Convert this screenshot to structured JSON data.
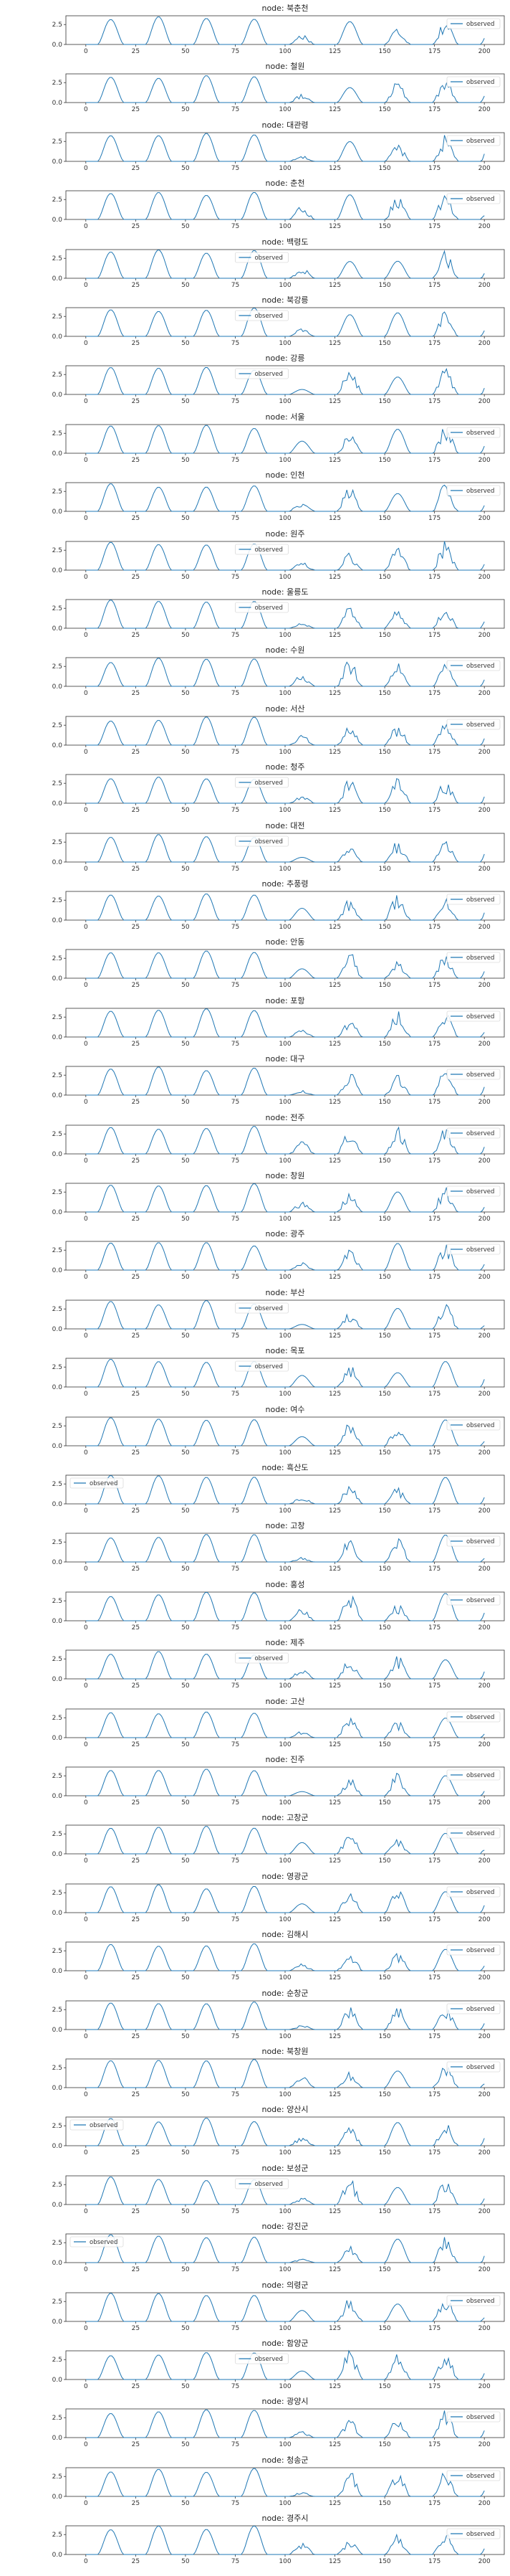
{
  "chart_data": {
    "type": "line",
    "title_prefix": "node: ",
    "xlim": [
      -10,
      210
    ],
    "ylim": [
      0,
      3.6
    ],
    "xticks": [
      0,
      25,
      50,
      75,
      100,
      125,
      150,
      175,
      200
    ],
    "yticks": [
      0.0,
      2.5
    ],
    "ytick_labels": [
      "0.0",
      "2.5"
    ],
    "line_color": "#1f77b4",
    "series_name": "observed",
    "panels": [
      {
        "node": "북춘천",
        "legend": "top-right"
      },
      {
        "node": "철원",
        "legend": "top-right"
      },
      {
        "node": "대관령",
        "legend": "top-right"
      },
      {
        "node": "춘천",
        "legend": "top-right"
      },
      {
        "node": "백령도",
        "legend": "upper-center"
      },
      {
        "node": "북강릉",
        "legend": "upper-center"
      },
      {
        "node": "강릉",
        "legend": "upper-center"
      },
      {
        "node": "서울",
        "legend": "top-right"
      },
      {
        "node": "인천",
        "legend": "top-right"
      },
      {
        "node": "원주",
        "legend": "upper-center"
      },
      {
        "node": "울릉도",
        "legend": "upper-center"
      },
      {
        "node": "수원",
        "legend": "top-right"
      },
      {
        "node": "서산",
        "legend": "top-right"
      },
      {
        "node": "청주",
        "legend": "upper-center"
      },
      {
        "node": "대전",
        "legend": "upper-center"
      },
      {
        "node": "추풍령",
        "legend": "top-right"
      },
      {
        "node": "안동",
        "legend": "top-right"
      },
      {
        "node": "포항",
        "legend": "top-right"
      },
      {
        "node": "대구",
        "legend": "top-right"
      },
      {
        "node": "전주",
        "legend": "top-right"
      },
      {
        "node": "창원",
        "legend": "top-right"
      },
      {
        "node": "광주",
        "legend": "top-right"
      },
      {
        "node": "부산",
        "legend": "upper-center"
      },
      {
        "node": "목포",
        "legend": "upper-center"
      },
      {
        "node": "여수",
        "legend": "top-right"
      },
      {
        "node": "흑산도",
        "legend": "upper-left"
      },
      {
        "node": "고창",
        "legend": "top-right"
      },
      {
        "node": "홍성",
        "legend": "top-right"
      },
      {
        "node": "제주",
        "legend": "upper-center"
      },
      {
        "node": "고산",
        "legend": "top-right"
      },
      {
        "node": "진주",
        "legend": "top-right"
      },
      {
        "node": "고창군",
        "legend": "top-right"
      },
      {
        "node": "영광군",
        "legend": "top-right"
      },
      {
        "node": "김해시",
        "legend": "top-right"
      },
      {
        "node": "순창군",
        "legend": "top-right"
      },
      {
        "node": "북창원",
        "legend": "top-right"
      },
      {
        "node": "양산시",
        "legend": "upper-left"
      },
      {
        "node": "보성군",
        "legend": "upper-center"
      },
      {
        "node": "강진군",
        "legend": "upper-left"
      },
      {
        "node": "의령군",
        "legend": "top-right"
      },
      {
        "node": "함양군",
        "legend": "upper-center"
      },
      {
        "node": "광양시",
        "legend": "top-right"
      },
      {
        "node": "청송군",
        "legend": "top-right"
      },
      {
        "node": "경주시",
        "legend": "top-right"
      }
    ]
  }
}
